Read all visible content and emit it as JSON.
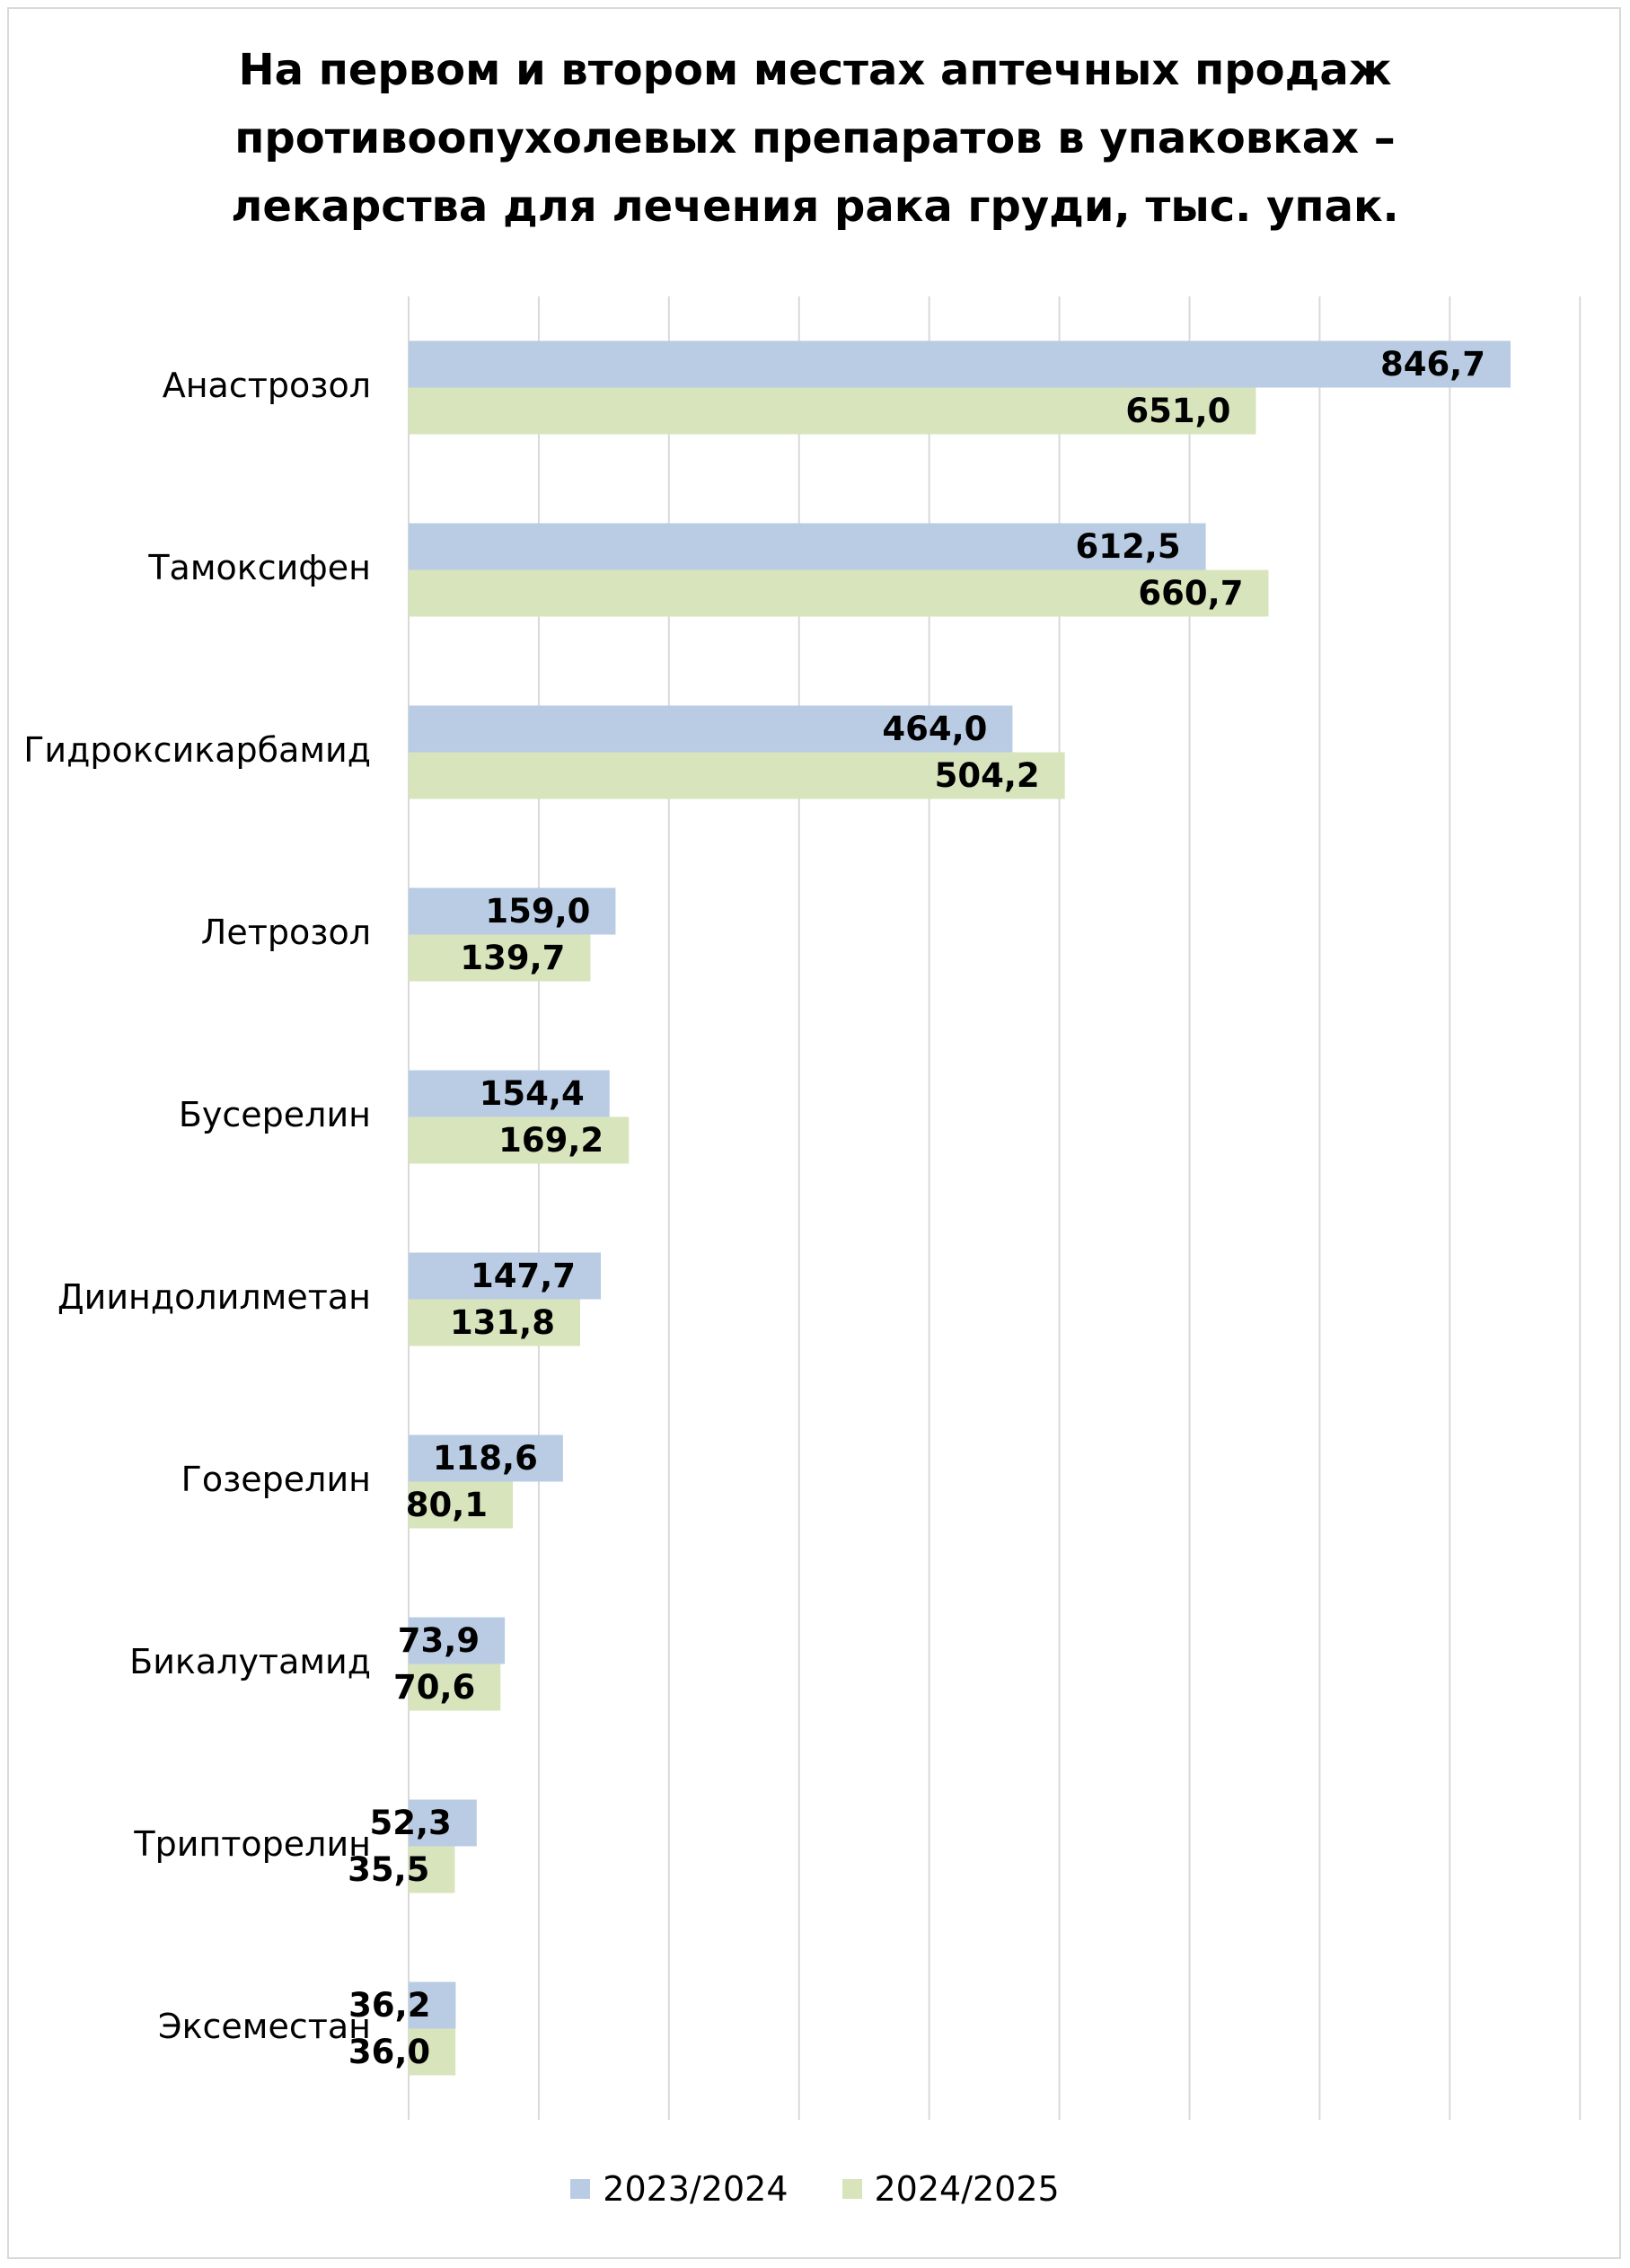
{
  "chart_data": {
    "type": "bar",
    "orientation": "horizontal",
    "title_lines": [
      "На первом и втором местах аптечных продаж",
      "противоопухолевых препаратов в упаковках –",
      "лекарства для лечения рака груди, тыс. упак."
    ],
    "categories": [
      "Анастрозол",
      "Тамоксифен",
      "Гидроксикарбамид",
      "Летрозол",
      "Бусерелин",
      "Дииндолилметан",
      "Гозерелин",
      "Бикалутамид",
      "Трипторелин",
      "Эксеместан"
    ],
    "series": [
      {
        "name": "2023/2024",
        "color": "#b9cce4",
        "values": [
          846.7,
          612.5,
          464.0,
          159.0,
          154.4,
          147.7,
          118.6,
          73.9,
          52.3,
          36.2
        ],
        "labels": [
          "846,7",
          "612,5",
          "464,0",
          "159,0",
          "154,4",
          "147,7",
          "118,6",
          "73,9",
          "52,3",
          "36,2"
        ]
      },
      {
        "name": "2024/2025",
        "color": "#d8e4bc",
        "values": [
          651.0,
          660.7,
          504.2,
          139.7,
          169.2,
          131.8,
          80.1,
          70.6,
          35.5,
          36.0
        ],
        "labels": [
          "651,0",
          "660,7",
          "504,2",
          "139,7",
          "169,2",
          "131,8",
          "80,1",
          "70,6",
          "35,5",
          "36,0"
        ]
      }
    ],
    "xlim": [
      0,
      900
    ],
    "grid": true,
    "legend_position": "bottom"
  }
}
